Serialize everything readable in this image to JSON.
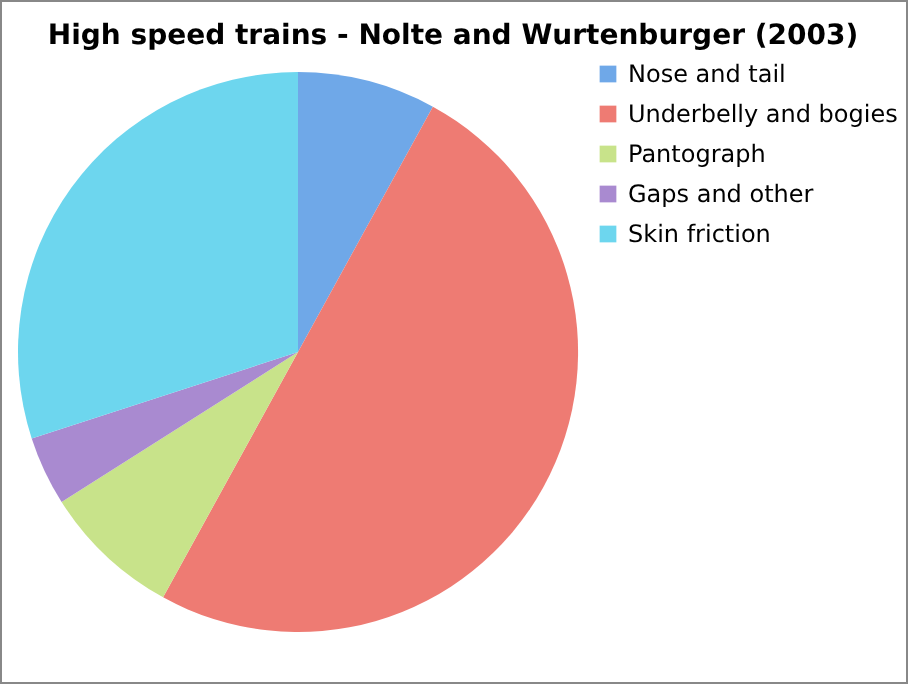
{
  "chart_data": {
    "type": "pie",
    "title": "High speed trains - Nolte and Wurtenburger (2003)",
    "categories": [
      "Nose and tail",
      "Underbelly and bogies",
      "Pantograph",
      "Gaps and other",
      "Skin friction"
    ],
    "values": [
      8,
      50,
      8,
      4,
      30
    ],
    "colors": [
      "#6fa8e8",
      "#ee7b73",
      "#c8e38a",
      "#a98ad0",
      "#6dd6ee"
    ],
    "legend": "right"
  }
}
